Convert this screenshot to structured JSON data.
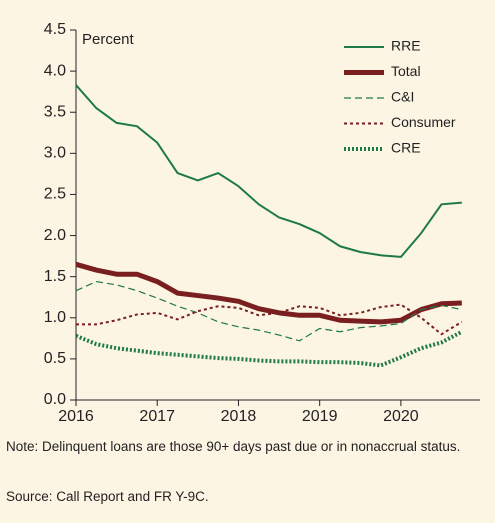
{
  "chart_data": {
    "type": "line",
    "y_label": "Percent",
    "x": [
      2016,
      2016.25,
      2016.5,
      2016.75,
      2017,
      2017.25,
      2017.5,
      2017.75,
      2018,
      2018.25,
      2018.5,
      2018.75,
      2019,
      2019.25,
      2019.5,
      2019.75,
      2020,
      2020.25,
      2020.5,
      2020.75
    ],
    "series": [
      {
        "name": "RRE",
        "color": "#1d7a46",
        "style": "solid",
        "values": [
          3.83,
          3.55,
          3.37,
          3.33,
          3.13,
          2.76,
          2.67,
          2.76,
          2.6,
          2.38,
          2.22,
          2.14,
          2.03,
          1.87,
          1.8,
          1.76,
          1.74,
          2.03,
          2.38,
          2.4
        ]
      },
      {
        "name": "Total",
        "color": "#7a1f1f",
        "style": "thick",
        "values": [
          1.65,
          1.58,
          1.53,
          1.53,
          1.44,
          1.3,
          1.27,
          1.24,
          1.2,
          1.11,
          1.06,
          1.03,
          1.03,
          0.97,
          0.96,
          0.95,
          0.97,
          1.1,
          1.17,
          1.18
        ]
      },
      {
        "name": "C&I",
        "color": "#1d7a46",
        "style": "dashed",
        "values": [
          1.33,
          1.44,
          1.4,
          1.33,
          1.24,
          1.14,
          1.06,
          0.95,
          0.89,
          0.85,
          0.79,
          0.72,
          0.87,
          0.83,
          0.88,
          0.9,
          0.93,
          1.1,
          1.15,
          1.1
        ]
      },
      {
        "name": "Consumer",
        "color": "#7a1f1f",
        "style": "dotted",
        "values": [
          0.92,
          0.92,
          0.97,
          1.04,
          1.06,
          0.98,
          1.08,
          1.14,
          1.12,
          1.03,
          1.06,
          1.14,
          1.12,
          1.03,
          1.06,
          1.13,
          1.16,
          1.0,
          0.8,
          0.95
        ]
      },
      {
        "name": "CRE",
        "color": "#1d7a46",
        "style": "thick-dotted",
        "values": [
          0.78,
          0.68,
          0.63,
          0.6,
          0.57,
          0.55,
          0.53,
          0.51,
          0.5,
          0.48,
          0.47,
          0.47,
          0.46,
          0.46,
          0.45,
          0.42,
          0.52,
          0.63,
          0.7,
          0.83
        ]
      }
    ],
    "xlim": [
      2016,
      2020.9
    ],
    "xticks": [
      2016,
      2017,
      2018,
      2019,
      2020
    ],
    "ylim": [
      0,
      4.5
    ],
    "yticks": [
      {
        "value": 0,
        "label": "0.0"
      },
      0.5,
      {
        "value": 1,
        "label": "1.0"
      },
      1.5,
      {
        "value": 2,
        "label": "2.0"
      },
      2.5,
      {
        "value": 3,
        "label": "3.0"
      },
      3.5,
      {
        "value": 4,
        "label": "4.0"
      },
      4.5
    ],
    "legend": "upper right",
    "note": "Note: Delinquent loans are those 90+ days past due or in nonaccrual status.",
    "source": "Source: Call Report and FR Y-9C."
  }
}
